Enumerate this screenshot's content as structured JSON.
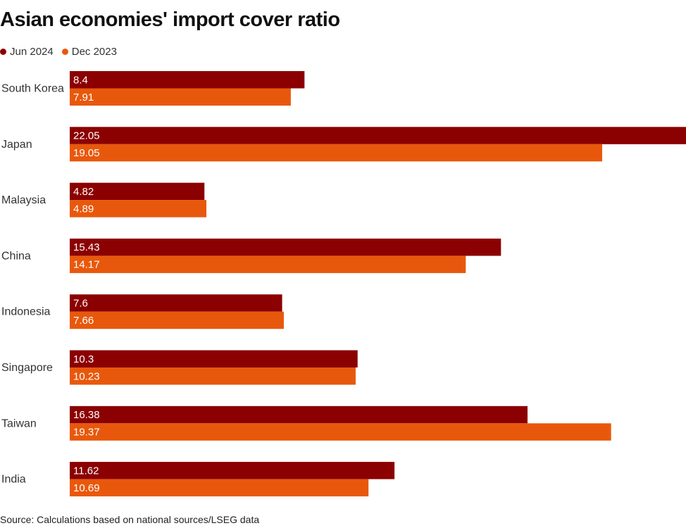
{
  "title": "Asian economies' import cover ratio",
  "legend": [
    {
      "label": "Jun 2024",
      "color": "#8b0000"
    },
    {
      "label": "Dec 2023",
      "color": "#e8580c"
    }
  ],
  "source": "Source: Calculations based on national sources/LSEG data",
  "chart_data": {
    "type": "bar",
    "orientation": "horizontal",
    "title": "Asian economies' import cover ratio",
    "categories": [
      "South Korea",
      "Japan",
      "Malaysia",
      "China",
      "Indonesia",
      "Singapore",
      "Taiwan",
      "India"
    ],
    "series": [
      {
        "name": "Jun 2024",
        "color": "#8b0000",
        "values": [
          8.4,
          22.05,
          4.82,
          15.43,
          7.6,
          10.3,
          16.38,
          11.62
        ],
        "labels": [
          "8.4",
          "22.05",
          "4.82",
          "15.43",
          "7.6",
          "10.3",
          "16.38",
          "11.62"
        ]
      },
      {
        "name": "Dec 2023",
        "color": "#e8580c",
        "values": [
          7.91,
          19.05,
          4.89,
          14.17,
          7.66,
          10.23,
          19.37,
          10.69
        ],
        "labels": [
          "7.91",
          "19.05",
          "4.89",
          "14.17",
          "7.66",
          "10.23",
          "19.37",
          "10.69"
        ]
      }
    ],
    "xlim": [
      0,
      22.05
    ],
    "xlabel": "",
    "ylabel": "",
    "grid": false,
    "legend_position": "top-left"
  }
}
